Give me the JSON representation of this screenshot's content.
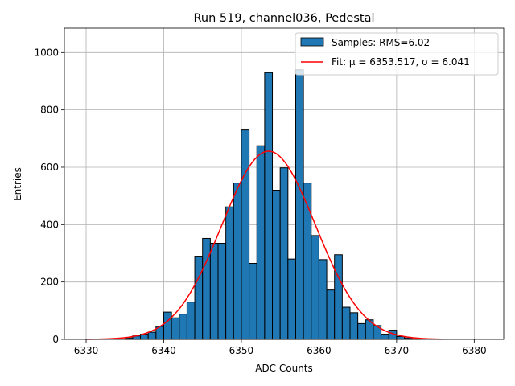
{
  "chart_data": {
    "type": "bar",
    "title": "Run 519, channel036, Pedestal",
    "xlabel": "ADC Counts",
    "ylabel": "Entries",
    "xlim": [
      6327.2,
      6383.8
    ],
    "ylim": [
      0,
      1085
    ],
    "xticks": [
      6330,
      6340,
      6350,
      6360,
      6370,
      6380
    ],
    "yticks": [
      0,
      200,
      400,
      600,
      800,
      1000
    ],
    "grid": true,
    "legend_position": "top-right",
    "bin_width": 1,
    "bin_start": 6330,
    "histogram": [
      0,
      0,
      0,
      0,
      0,
      5,
      12,
      18,
      25,
      45,
      95,
      75,
      88,
      130,
      290,
      352,
      335,
      335,
      462,
      545,
      730,
      265,
      675,
      930,
      520,
      598,
      280,
      940,
      545,
      362,
      278,
      172,
      295,
      112,
      93,
      55,
      68,
      48,
      18,
      32,
      10,
      5,
      2,
      0,
      0,
      0
    ],
    "series": [
      {
        "name": "Samples: RMS=6.02",
        "kind": "histogram",
        "color": "#1f77b4"
      },
      {
        "name": "Fit: μ = 6353.517, σ = 6.041",
        "kind": "gaussian-fit",
        "color": "#ff0000",
        "mu": 6353.517,
        "sigma": 6.041,
        "amplitude": 656,
        "x_range": [
          6330,
          6376
        ]
      }
    ]
  }
}
